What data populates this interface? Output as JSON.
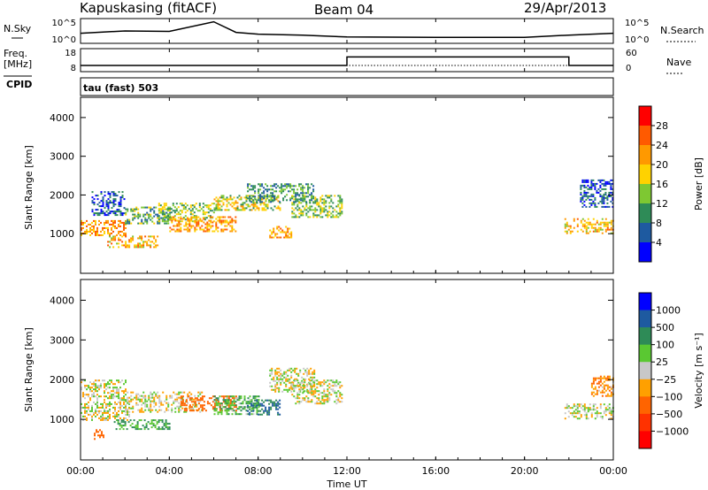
{
  "header": {
    "station": "Kapuskasing (fitACF)",
    "beam": "Beam 04",
    "date": "29/Apr/2013"
  },
  "strip1": {
    "left_label": "N.Sky",
    "left_ticks": [
      "10^5",
      "10^0"
    ],
    "right_ticks": [
      "10^5",
      "10^0"
    ],
    "right_label": "N.Search"
  },
  "strip2": {
    "left_label_top": "Freq.",
    "left_label_unit": "[MHz]",
    "left_label_bottom": "CPID",
    "left_ticks": [
      "18",
      "8"
    ],
    "right_ticks": [
      "60",
      "0"
    ],
    "right_label": "Nave",
    "cpid_text": "tau (fast) 503"
  },
  "panels": {
    "ylabel": "Slant Range [km]",
    "yticks": [
      "4000",
      "3000",
      "2000",
      "1000"
    ],
    "xticks": [
      "00:00",
      "04:00",
      "08:00",
      "12:00",
      "16:00",
      "20:00",
      "00:00"
    ],
    "xlabel": "Time UT"
  },
  "power_scale": {
    "label": "Power [dB]",
    "ticks": [
      "28",
      "24",
      "20",
      "16",
      "12",
      "8",
      "4"
    ],
    "colors": [
      "#ff0000",
      "#ff5a00",
      "#ff9900",
      "#ffd200",
      "#7ec832",
      "#2e8b57",
      "#1e5aa0",
      "#0000ff"
    ]
  },
  "velocity_scale": {
    "label": "Velocity [m s⁻¹]",
    "ticks": [
      "1000",
      "500",
      "100",
      "25",
      "−25",
      "−100",
      "−500",
      "−1000"
    ],
    "colors": [
      "#0000ff",
      "#1e5aa0",
      "#2e8b57",
      "#5ac832",
      "#c8c8c8",
      "#ffa000",
      "#ff6400",
      "#ff3200",
      "#ff0000"
    ]
  },
  "chart_data": [
    {
      "type": "line",
      "name": "N.Sky / N.Search",
      "x": [
        "00:00",
        "02:00",
        "04:00",
        "06:00",
        "07:00",
        "08:00",
        "10:00",
        "12:00",
        "16:00",
        "20:00",
        "22:00",
        "24:00"
      ],
      "series": [
        {
          "values": [
            2.0,
            2.5,
            2.4,
            4.5,
            2.2,
            1.8,
            1.6,
            1.2,
            1.1,
            1.1,
            1.6,
            2.0
          ]
        }
      ],
      "ylim": [
        0,
        5
      ]
    },
    {
      "type": "line",
      "name": "Freq / Nave",
      "x": [
        "00:00",
        "12:00",
        "12:00",
        "22:00",
        "22:00",
        "24:00"
      ],
      "series": [
        {
          "values": [
            10.5,
            10.5,
            14.5,
            14.5,
            10.5,
            10.5
          ]
        }
      ],
      "ylim": [
        8,
        18
      ]
    },
    {
      "type": "heatmap",
      "name": "power",
      "xlim": [
        0,
        24
      ],
      "ylim": [
        0,
        4500
      ],
      "clim": [
        0,
        30
      ],
      "blobs": [
        {
          "x": [
            0.0,
            2.0
          ],
          "y": [
            950,
            1350
          ],
          "v": 22
        },
        {
          "x": [
            0.5,
            2.0
          ],
          "y": [
            1500,
            2100
          ],
          "v": 6
        },
        {
          "x": [
            1.2,
            3.5
          ],
          "y": [
            650,
            950
          ],
          "v": 20
        },
        {
          "x": [
            2.0,
            4.0
          ],
          "y": [
            1250,
            1700
          ],
          "v": 12
        },
        {
          "x": [
            3.5,
            6.0
          ],
          "y": [
            1300,
            1800
          ],
          "v": 14
        },
        {
          "x": [
            4.0,
            7.0
          ],
          "y": [
            1050,
            1450
          ],
          "v": 22
        },
        {
          "x": [
            6.0,
            9.0
          ],
          "y": [
            1600,
            2000
          ],
          "v": 16
        },
        {
          "x": [
            7.5,
            10.5
          ],
          "y": [
            1800,
            2300
          ],
          "v": 10
        },
        {
          "x": [
            8.5,
            9.5
          ],
          "y": [
            900,
            1200
          ],
          "v": 22
        },
        {
          "x": [
            9.5,
            11.8
          ],
          "y": [
            1450,
            2000
          ],
          "v": 14
        },
        {
          "x": [
            21.8,
            24.0
          ],
          "y": [
            1000,
            1400
          ],
          "v": 20
        },
        {
          "x": [
            22.5,
            24.0
          ],
          "y": [
            1700,
            2400
          ],
          "v": 6
        }
      ]
    },
    {
      "type": "heatmap",
      "name": "velocity",
      "xlim": [
        0,
        24
      ],
      "ylim": [
        0,
        4500
      ],
      "clim": [
        -1000,
        1000
      ],
      "blobs": [
        {
          "x": [
            0.0,
            2.2
          ],
          "y": [
            1000,
            1450
          ],
          "v": 0
        },
        {
          "x": [
            0.0,
            2.0
          ],
          "y": [
            1500,
            2000
          ],
          "v": 0
        },
        {
          "x": [
            1.5,
            4.0
          ],
          "y": [
            750,
            1000
          ],
          "v": 120
        },
        {
          "x": [
            2.0,
            5.5
          ],
          "y": [
            1200,
            1700
          ],
          "v": 0
        },
        {
          "x": [
            4.5,
            7.0
          ],
          "y": [
            1200,
            1600
          ],
          "v": -400
        },
        {
          "x": [
            6.0,
            8.0
          ],
          "y": [
            1150,
            1600
          ],
          "v": 80
        },
        {
          "x": [
            7.5,
            9.0
          ],
          "y": [
            1100,
            1500
          ],
          "v": 500
        },
        {
          "x": [
            8.5,
            10.5
          ],
          "y": [
            1700,
            2300
          ],
          "v": 0
        },
        {
          "x": [
            9.5,
            11.8
          ],
          "y": [
            1400,
            2000
          ],
          "v": 0
        },
        {
          "x": [
            0.6,
            1.0
          ],
          "y": [
            500,
            750
          ],
          "v": -300
        },
        {
          "x": [
            21.8,
            24.0
          ],
          "y": [
            1000,
            1400
          ],
          "v": 0
        },
        {
          "x": [
            23.0,
            24.0
          ],
          "y": [
            1600,
            2100
          ],
          "v": -80
        }
      ]
    }
  ]
}
